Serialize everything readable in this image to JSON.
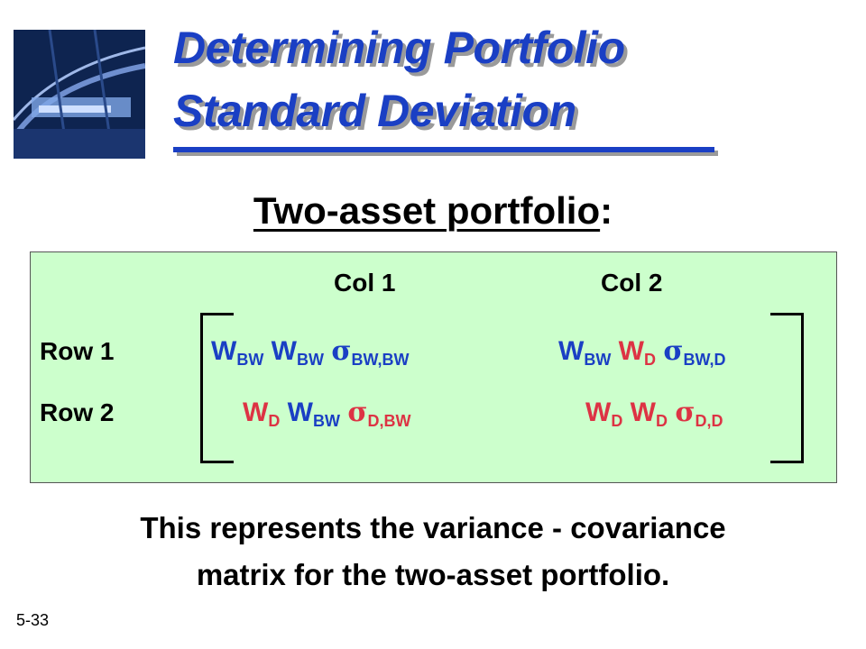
{
  "slide": {
    "title_line1": "Determining Portfolio",
    "title_line2": "Standard Deviation",
    "subtitle_main": "Two-asset portfolio",
    "subtitle_colon": ":",
    "slide_number": "5-33"
  },
  "matrix": {
    "col1_header": "Col 1",
    "col2_header": "Col 2",
    "row1_header": "Row 1",
    "row2_header": "Row 2",
    "cells": {
      "r1c1": {
        "w1": "W",
        "s1": "BW",
        "w2": "W",
        "s2": "BW",
        "sigma": "σ",
        "s3": "BW,BW"
      },
      "r1c2": {
        "w1": "W",
        "s1": "BW",
        "w2": "W",
        "s2": "D",
        "sigma": "σ",
        "s3": "BW,D"
      },
      "r2c1": {
        "w1": "W",
        "s1": "D",
        "w2": "W",
        "s2": "BW",
        "sigma": "σ",
        "s3": "D,BW"
      },
      "r2c2": {
        "w1": "W",
        "s1": "D",
        "w2": "W",
        "s2": "D",
        "sigma": "σ",
        "s3": "D,D"
      }
    }
  },
  "caption": {
    "line1": "This represents the variance - covariance",
    "line2": "matrix for the two-asset portfolio."
  },
  "colors": {
    "title_blue": "#1a3fc4",
    "cell_red": "#dd3344",
    "panel_green": "#ccffcc"
  },
  "icons": {
    "logo": "bridge-photo-icon"
  }
}
